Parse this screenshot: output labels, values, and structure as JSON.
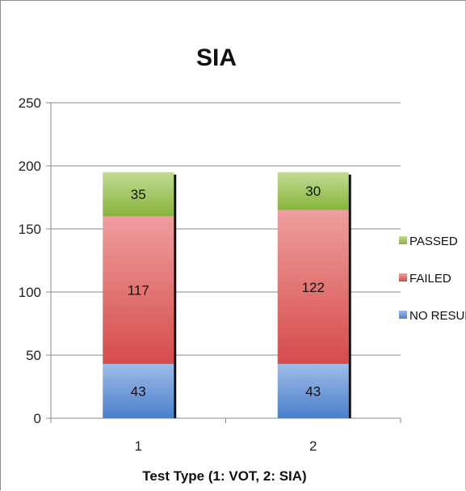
{
  "chart_data": {
    "type": "bar",
    "stacked": true,
    "title": "SIA",
    "xlabel": "Test Type (1: VOT, 2: SIA)",
    "ylabel": "",
    "categories": [
      "1",
      "2"
    ],
    "ylim": [
      0,
      250
    ],
    "yticks": [
      0,
      50,
      100,
      150,
      200,
      250
    ],
    "grid": true,
    "legend_position": "right",
    "series": [
      {
        "name": "NO RESULT",
        "values": [
          43,
          43
        ],
        "color": "#4f86d6"
      },
      {
        "name": "FAILED",
        "values": [
          117,
          122
        ],
        "color": "#e0504e"
      },
      {
        "name": "PASSED",
        "values": [
          35,
          30
        ],
        "color": "#8fbd3e"
      }
    ]
  }
}
